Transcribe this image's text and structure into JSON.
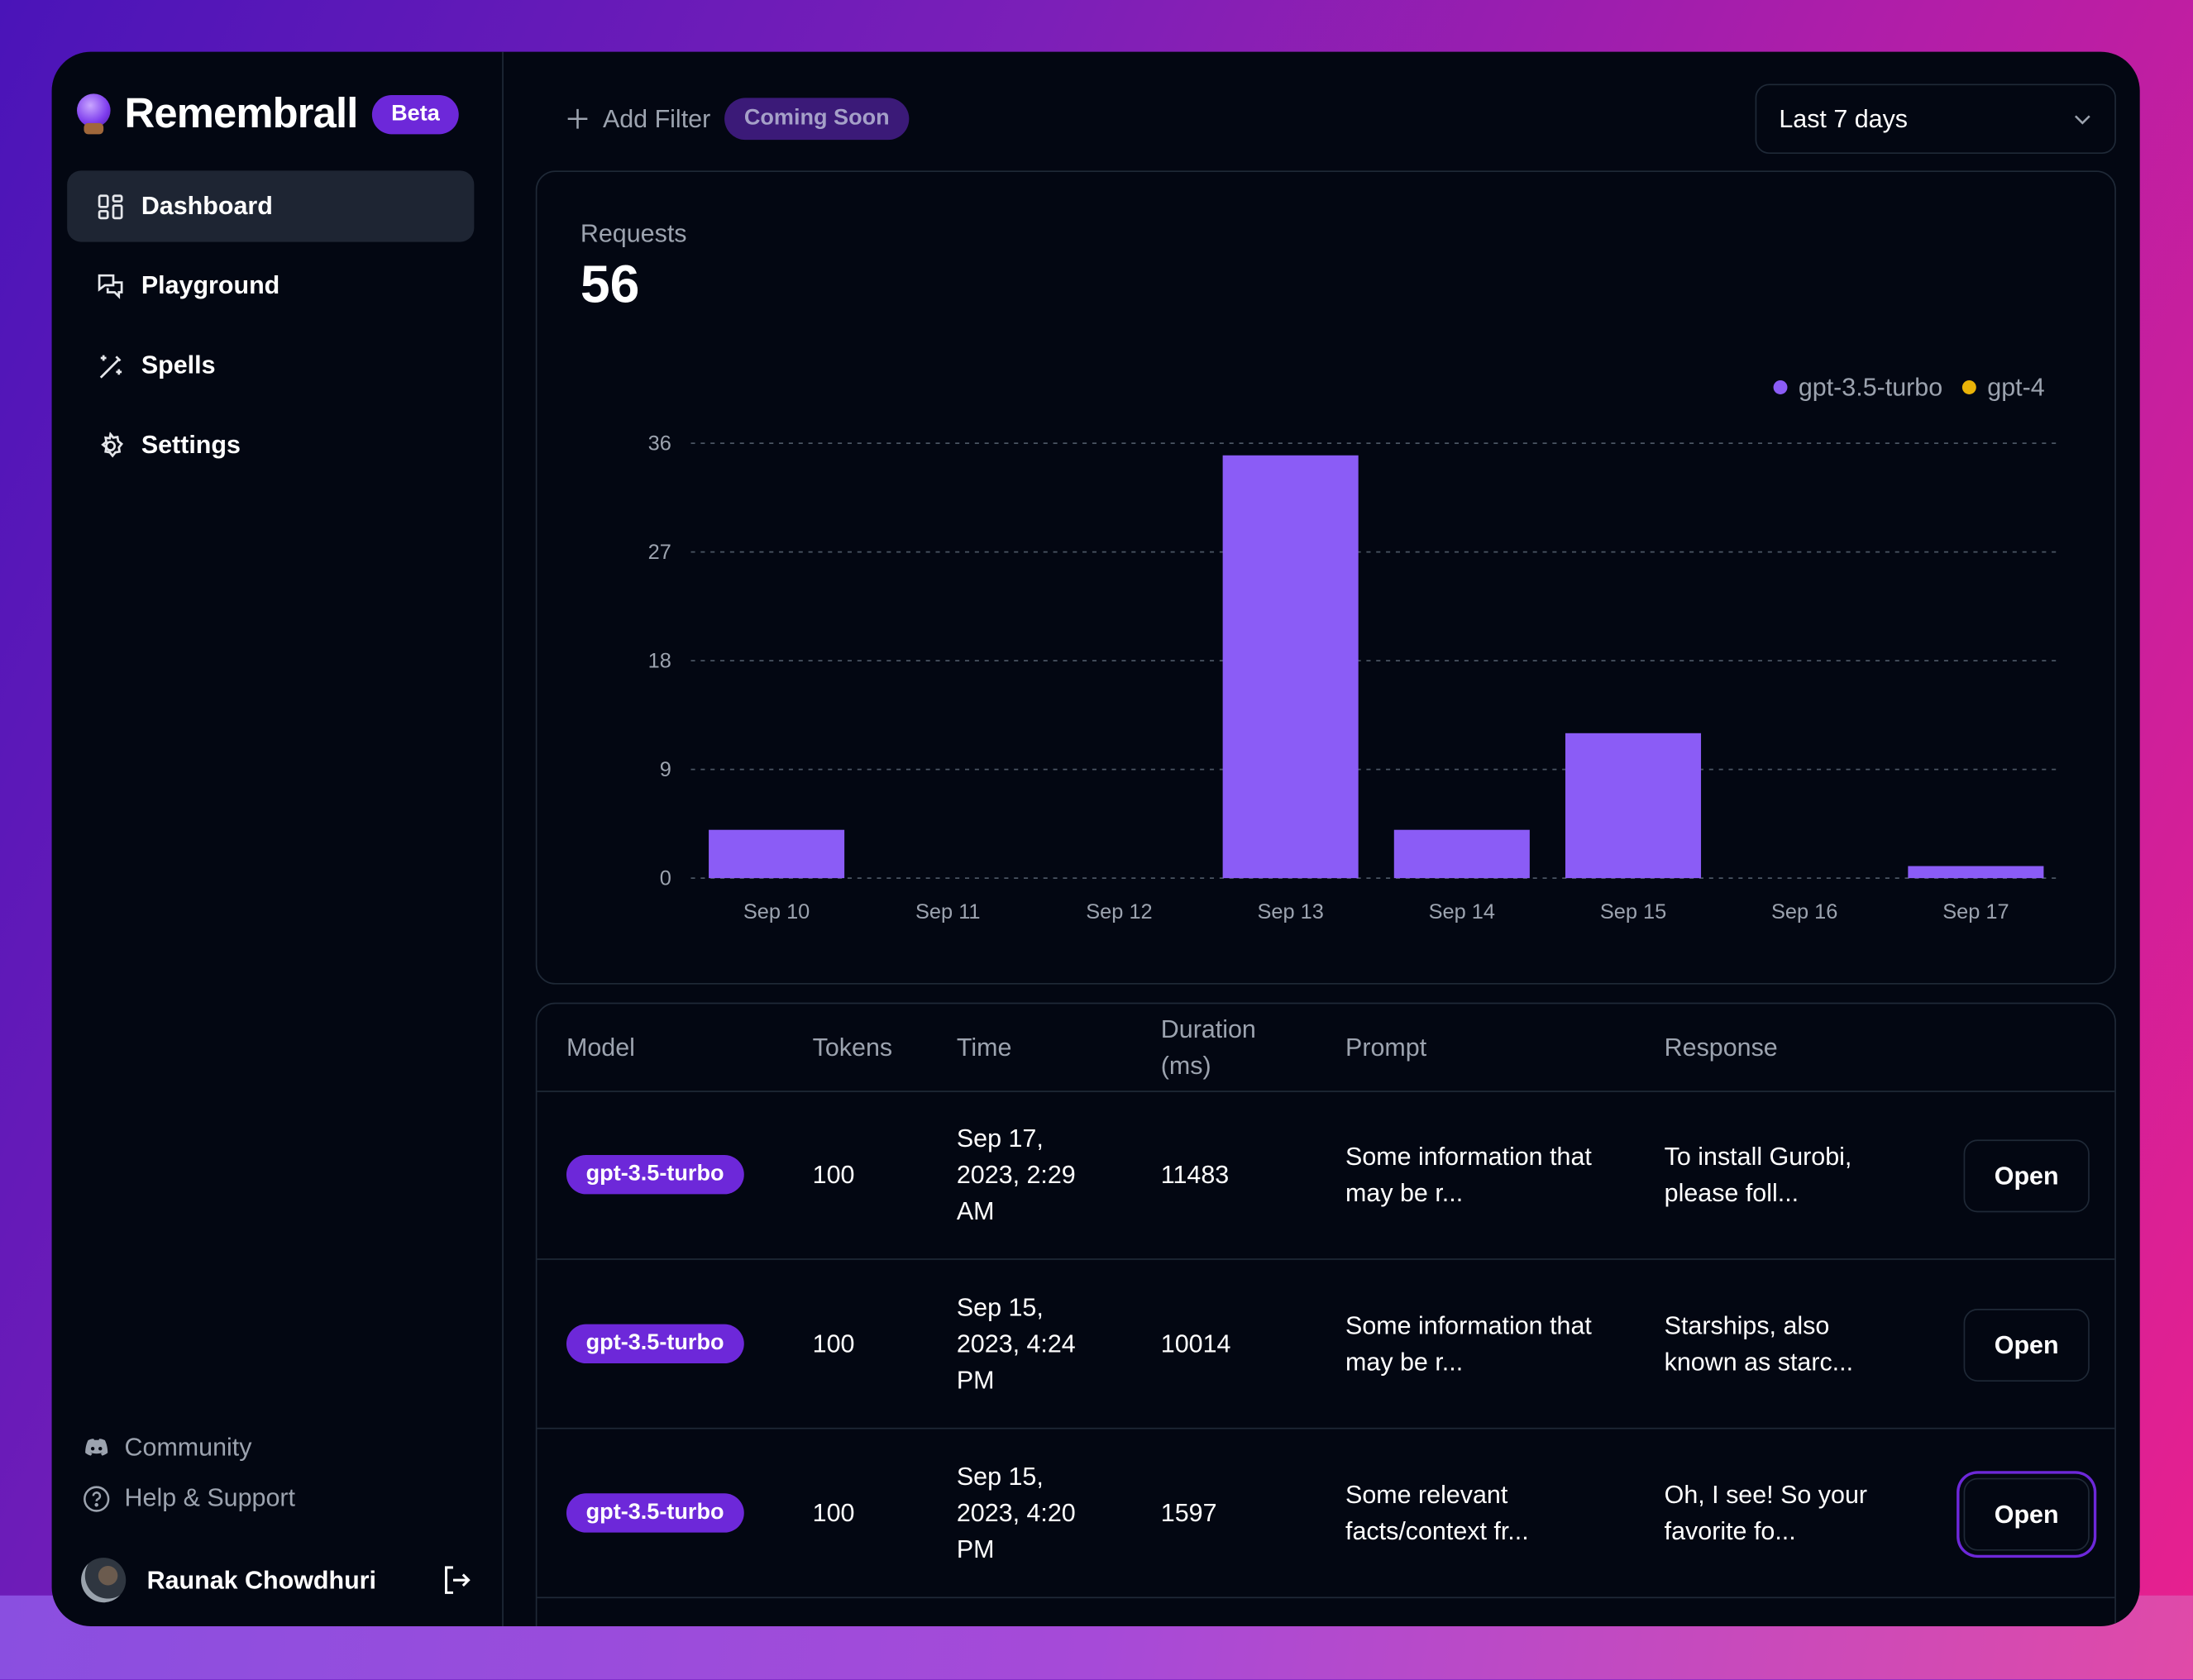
{
  "app": {
    "name": "Remembrall",
    "badge": "Beta"
  },
  "sidebar": {
    "items": [
      {
        "label": "Dashboard",
        "icon": "dashboard-icon",
        "active": true
      },
      {
        "label": "Playground",
        "icon": "chat-bubbles-icon"
      },
      {
        "label": "Spells",
        "icon": "magic-wand-icon"
      },
      {
        "label": "Settings",
        "icon": "gear-icon"
      }
    ],
    "footer": [
      {
        "label": "Community",
        "icon": "discord-icon"
      },
      {
        "label": "Help & Support",
        "icon": "help-circle-icon"
      }
    ],
    "user": {
      "name": "Raunak Chowdhuri"
    }
  },
  "toolbar": {
    "add_filter": "Add Filter",
    "coming_soon": "Coming Soon",
    "range": "Last 7 days"
  },
  "stats": {
    "label": "Requests",
    "value": "56"
  },
  "colors": {
    "accent": "#6d28d9",
    "bar": "#8b5cf6",
    "gpt4": "#eab308"
  },
  "chart_data": {
    "type": "bar",
    "categories": [
      "Sep 10",
      "Sep 11",
      "Sep 12",
      "Sep 13",
      "Sep 14",
      "Sep 15",
      "Sep 16",
      "Sep 17"
    ],
    "series": [
      {
        "name": "gpt-3.5-turbo",
        "color": "#8b5cf6",
        "values": [
          4,
          0,
          0,
          35,
          4,
          12,
          0,
          1
        ]
      },
      {
        "name": "gpt-4",
        "color": "#eab308",
        "values": [
          0,
          0,
          0,
          0,
          0,
          0,
          0,
          0
        ]
      }
    ],
    "yticks": [
      0,
      9,
      18,
      27,
      36
    ],
    "ylim": [
      0,
      36
    ],
    "grid": true,
    "legend": "top-right",
    "stacked": true
  },
  "table": {
    "headers": [
      "Model",
      "Tokens",
      "Time",
      "Duration (ms)",
      "Prompt",
      "Response"
    ],
    "open_label": "Open",
    "rows": [
      {
        "model": "gpt-3.5-turbo",
        "tokens": "100",
        "time": "Sep 17, 2023, 2:29 AM",
        "duration": "11483",
        "prompt": "Some information that may be r...",
        "response": "To install Gurobi, please foll..."
      },
      {
        "model": "gpt-3.5-turbo",
        "tokens": "100",
        "time": "Sep 15, 2023, 4:24 PM",
        "duration": "10014",
        "prompt": "Some information that may be r...",
        "response": "Starships, also known as starc..."
      },
      {
        "model": "gpt-3.5-turbo",
        "tokens": "100",
        "time": "Sep 15, 2023, 4:20 PM",
        "duration": "1597",
        "prompt": "Some relevant facts/context fr...",
        "response": "Oh, I see! So your favorite fo..."
      }
    ]
  }
}
